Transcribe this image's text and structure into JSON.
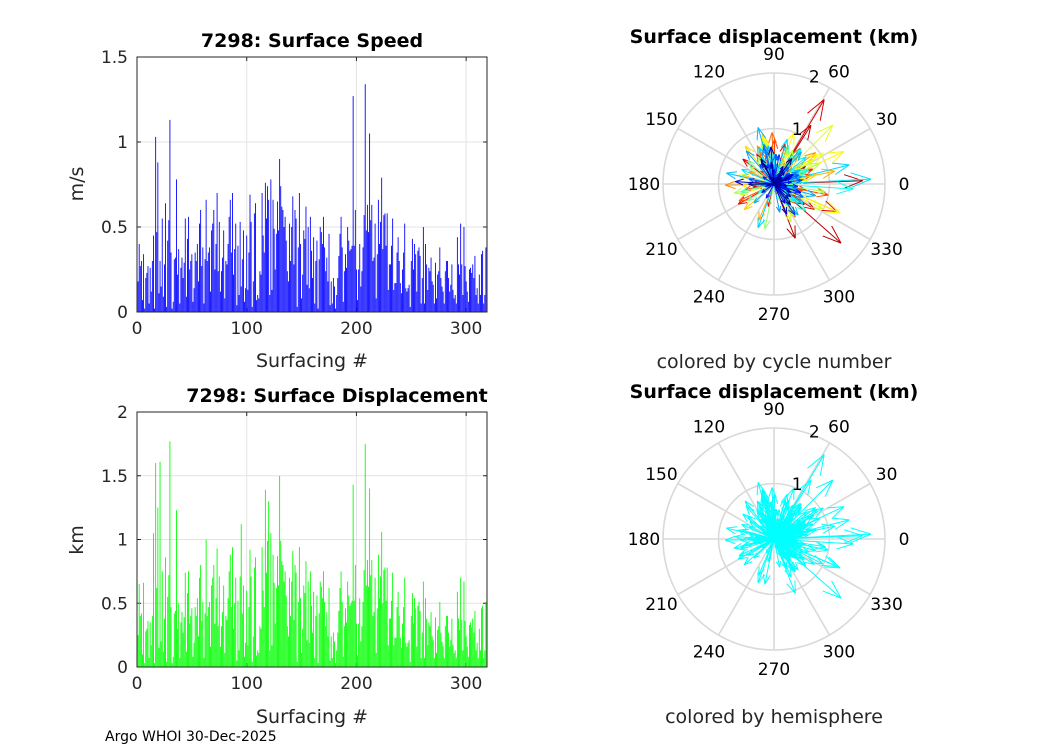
{
  "footer": "Argo WHOI 30-Dec-2025",
  "chart_data": [
    {
      "type": "bar",
      "title": "7298: Surface Speed",
      "xlabel": "Surfacing #",
      "ylabel": "m/s",
      "xlim": [
        0,
        319
      ],
      "ylim": [
        0,
        1.5
      ],
      "xticks": [
        "0",
        "100",
        "200",
        "300"
      ],
      "yticks": [
        "0",
        "0.5",
        "1",
        "1.5"
      ],
      "grid": true,
      "color": "#0000ff",
      "values": [
        0.18,
        0.4,
        0.27,
        0.3,
        0.07,
        0.34,
        0.02,
        0.2,
        0.23,
        0.27,
        0.05,
        0.26,
        0.12,
        0.3,
        0.45,
        0.02,
        1.03,
        0.47,
        0.88,
        0.11,
        0.3,
        0.15,
        0.55,
        0.09,
        0.28,
        0.64,
        0.03,
        0.42,
        0.54,
        1.13,
        0.35,
        0.02,
        0.06,
        0.31,
        0.32,
        0.78,
        0.22,
        0.37,
        0.05,
        0.26,
        0.32,
        0.2,
        0.29,
        0.55,
        0.09,
        0.43,
        0.56,
        0.25,
        0.3,
        0.34,
        0.06,
        0.14,
        0.35,
        0.3,
        0.4,
        0.18,
        0.52,
        0.6,
        0.27,
        0.38,
        0.05,
        0.31,
        0.66,
        0.3,
        0.35,
        0.38,
        0.12,
        0.48,
        0.52,
        0.6,
        0.25,
        0.4,
        0.7,
        0.24,
        0.53,
        0.12,
        0.24,
        0.32,
        0.48,
        0.08,
        0.3,
        0.28,
        0.4,
        0.56,
        0.66,
        0.35,
        0.7,
        0.22,
        0.37,
        0.52,
        0.04,
        0.39,
        0.1,
        0.53,
        0.15,
        0.31,
        0.48,
        0.06,
        0.14,
        0.45,
        0.13,
        0.35,
        0.69,
        0.53,
        0.03,
        0.18,
        0.58,
        0.64,
        0.07,
        0.1,
        0.08,
        0.24,
        0.22,
        0.7,
        0.45,
        0.35,
        0.76,
        0.55,
        0.74,
        0.66,
        0.1,
        0.78,
        0.13,
        0.66,
        0.49,
        0.25,
        0.46,
        0.65,
        0.48,
        0.9,
        0.74,
        0.62,
        0.6,
        0.5,
        0.56,
        0.42,
        0.24,
        0.18,
        0.52,
        0.3,
        0.5,
        0.68,
        0.28,
        0.6,
        0.55,
        0.03,
        0.38,
        0.7,
        0.4,
        0.08,
        0.22,
        0.48,
        0.43,
        0.62,
        0.16,
        0.5,
        0.14,
        0.56,
        0.36,
        0.2,
        0.44,
        0.05,
        0.3,
        0.42,
        0.02,
        0.31,
        0.5,
        0.47,
        0.4,
        0.56,
        0.38,
        0.24,
        0.32,
        0.18,
        0.46,
        0.04,
        0.18,
        0.05,
        0.2,
        0.15,
        0.02,
        0.1,
        0.2,
        0.33,
        0.46,
        0.56,
        0.38,
        0.06,
        0.24,
        0.34,
        0.26,
        0.5,
        0.42,
        0.36,
        0.37,
        0.39,
        1.27,
        0.39,
        0.6,
        0.25,
        0.07,
        0.25,
        0.4,
        0.15,
        0.24,
        0.38,
        0.57,
        1.34,
        0.48,
        0.63,
        0.47,
        1.05,
        0.54,
        0.63,
        0.3,
        0.32,
        0.52,
        0.08,
        0.34,
        0.66,
        0.4,
        0.53,
        0.79,
        0.37,
        0.57,
        0.58,
        0.39,
        0.58,
        0.13,
        0.28,
        0.28,
        0.39,
        0.55,
        0.13,
        0.17,
        0.17,
        0.35,
        0.44,
        0.3,
        0.17,
        0.11,
        0.25,
        0.35,
        0.52,
        0.14,
        0.12,
        0.14,
        0.16,
        0.03,
        0.3,
        0.43,
        0.25,
        0.4,
        0.34,
        0.12,
        0.36,
        0.38,
        0.33,
        0.05,
        0.2,
        0.5,
        0.05,
        0.4,
        0.28,
        0.13,
        0.26,
        0.24,
        0.32,
        0.18,
        0.16,
        0.05,
        0.29,
        0.08,
        0.22,
        0.24,
        0.38,
        0.2,
        0.15,
        0.12,
        0.05,
        0.24,
        0.3,
        0.3,
        0.2,
        0.12,
        0.16,
        0.28,
        0.13,
        0.08,
        0.1,
        0.05,
        0.44,
        0.28,
        0.22,
        0.52,
        0.28,
        0.1,
        0.5,
        0.27,
        0.18,
        0.12,
        0.06,
        0.25,
        0.26,
        0.23,
        0.28,
        0.2,
        0.33,
        0.1,
        0.14,
        0.05,
        0.22,
        0.1,
        0.34,
        0.36,
        0.05,
        0.1,
        0.38,
        0.42
      ]
    },
    {
      "type": "bar",
      "title": "7298: Surface Displacement",
      "xlabel": "Surfacing #",
      "ylabel": "km",
      "xlim": [
        0,
        319
      ],
      "ylim": [
        0,
        2
      ],
      "xticks": [
        "0",
        "100",
        "200",
        "300"
      ],
      "yticks": [
        "0",
        "0.5",
        "1",
        "1.5",
        "2"
      ],
      "grid": true,
      "color": "#00ff00",
      "values": [
        0.25,
        0.65,
        0.4,
        0.42,
        0.1,
        0.66,
        0.03,
        0.28,
        0.3,
        0.36,
        0.07,
        0.35,
        0.17,
        0.4,
        1.05,
        0.03,
        1.6,
        0.62,
        1.25,
        0.15,
        1.61,
        0.2,
        0.75,
        0.12,
        0.38,
        0.86,
        0.04,
        0.55,
        0.72,
        1.77,
        0.47,
        0.03,
        0.08,
        0.42,
        0.44,
        1.23,
        0.3,
        0.5,
        0.07,
        0.35,
        0.43,
        0.27,
        0.39,
        0.74,
        0.12,
        0.58,
        0.75,
        0.34,
        0.4,
        0.46,
        0.08,
        0.19,
        0.47,
        0.4,
        0.54,
        0.24,
        0.7,
        0.8,
        0.36,
        0.51,
        0.07,
        0.42,
        1.0,
        0.4,
        0.47,
        0.51,
        0.16,
        0.64,
        0.7,
        0.8,
        0.34,
        0.54,
        0.93,
        0.32,
        0.71,
        0.16,
        0.32,
        0.43,
        0.64,
        0.11,
        0.4,
        0.37,
        0.54,
        0.75,
        0.88,
        0.47,
        0.94,
        0.3,
        0.5,
        0.7,
        0.05,
        0.52,
        0.13,
        0.71,
        1.12,
        0.42,
        0.64,
        0.08,
        0.19,
        0.6,
        0.17,
        0.47,
        0.92,
        0.71,
        0.04,
        0.24,
        0.78,
        0.86,
        0.09,
        0.13,
        0.11,
        0.32,
        0.3,
        0.94,
        0.6,
        0.47,
        1.39,
        0.74,
        0.99,
        1.3,
        0.13,
        1.05,
        0.17,
        0.88,
        0.66,
        0.34,
        0.62,
        0.87,
        0.64,
        1.5,
        0.99,
        0.83,
        0.8,
        0.67,
        0.75,
        0.56,
        0.32,
        0.24,
        0.7,
        0.4,
        0.67,
        0.91,
        0.37,
        0.8,
        0.74,
        0.04,
        0.51,
        0.94,
        0.54,
        0.11,
        0.3,
        0.64,
        0.58,
        0.83,
        0.21,
        0.67,
        0.19,
        0.75,
        0.48,
        0.27,
        0.59,
        0.07,
        0.4,
        0.56,
        0.03,
        0.42,
        0.67,
        0.63,
        0.54,
        0.75,
        0.51,
        0.32,
        0.43,
        0.24,
        0.62,
        0.05,
        0.24,
        0.07,
        0.27,
        0.2,
        0.03,
        0.13,
        0.27,
        0.44,
        0.62,
        0.75,
        0.51,
        0.08,
        0.32,
        0.46,
        0.35,
        0.67,
        0.56,
        0.48,
        0.5,
        0.52,
        1.43,
        0.52,
        0.8,
        0.34,
        0.09,
        0.34,
        0.54,
        0.2,
        0.32,
        0.51,
        0.76,
        1.75,
        0.64,
        0.84,
        0.63,
        1.4,
        0.72,
        0.84,
        0.4,
        0.43,
        0.7,
        0.11,
        0.46,
        0.88,
        0.54,
        0.71,
        1.06,
        0.5,
        0.76,
        0.78,
        0.52,
        0.78,
        0.17,
        0.38,
        0.38,
        0.52,
        0.74,
        0.17,
        0.23,
        0.23,
        0.47,
        0.59,
        0.4,
        0.23,
        0.15,
        0.34,
        0.47,
        0.7,
        0.19,
        0.16,
        0.19,
        0.21,
        0.04,
        0.4,
        0.58,
        0.34,
        0.54,
        0.46,
        0.16,
        0.48,
        0.51,
        0.44,
        0.07,
        0.27,
        0.67,
        0.07,
        0.54,
        0.38,
        0.17,
        0.35,
        0.32,
        0.43,
        0.24,
        0.21,
        0.07,
        0.39,
        0.11,
        0.29,
        0.32,
        0.51,
        0.27,
        0.2,
        0.16,
        0.07,
        0.32,
        0.4,
        0.4,
        0.27,
        0.16,
        0.21,
        0.38,
        0.17,
        0.11,
        0.13,
        0.07,
        0.59,
        0.38,
        0.29,
        0.7,
        0.37,
        0.13,
        0.67,
        0.36,
        0.24,
        0.16,
        0.08,
        0.33,
        0.35,
        0.31,
        0.38,
        0.27,
        0.44,
        0.13,
        0.19,
        0.07,
        0.3,
        0.13,
        0.46,
        0.48,
        0.07,
        0.13,
        0.51,
        0.56
      ]
    },
    {
      "type": "polar-compass",
      "title": "Surface displacement (km)",
      "subtitle": "colored by cycle number",
      "rlim": [
        0,
        2
      ],
      "rticks": [
        "1",
        "2"
      ],
      "angle_ticks": [
        "0",
        "30",
        "60",
        "90",
        "120",
        "150",
        "180",
        "210",
        "240",
        "270",
        "300",
        "330"
      ],
      "coloring": "jet colormap by cycle",
      "magnitude_source": "displacement values (km)",
      "directions_deg_cycle": [
        10,
        35,
        340,
        100,
        60,
        320,
        15,
        110,
        200,
        45,
        330,
        25,
        95,
        175,
        300,
        20,
        5,
        120,
        55,
        350,
        310,
        30,
        80,
        105,
        190,
        325,
        40,
        0,
        150,
        65,
        335,
        20,
        115,
        250,
        12,
        345,
        90,
        50,
        315,
        170,
        28,
        305,
        100,
        215,
        58,
        350,
        18,
        130,
        330,
        75,
        8,
        290,
        110,
        40,
        185,
        320,
        22,
        95,
        60,
        345
      ]
    },
    {
      "type": "polar-compass",
      "title": "Surface displacement (km)",
      "subtitle": "colored by hemisphere",
      "rlim": [
        0,
        2
      ],
      "rticks": [
        "1",
        "2"
      ],
      "angle_ticks": [
        "0",
        "30",
        "60",
        "90",
        "120",
        "150",
        "180",
        "210",
        "240",
        "270",
        "300",
        "330"
      ],
      "color": "#00ffff"
    }
  ]
}
